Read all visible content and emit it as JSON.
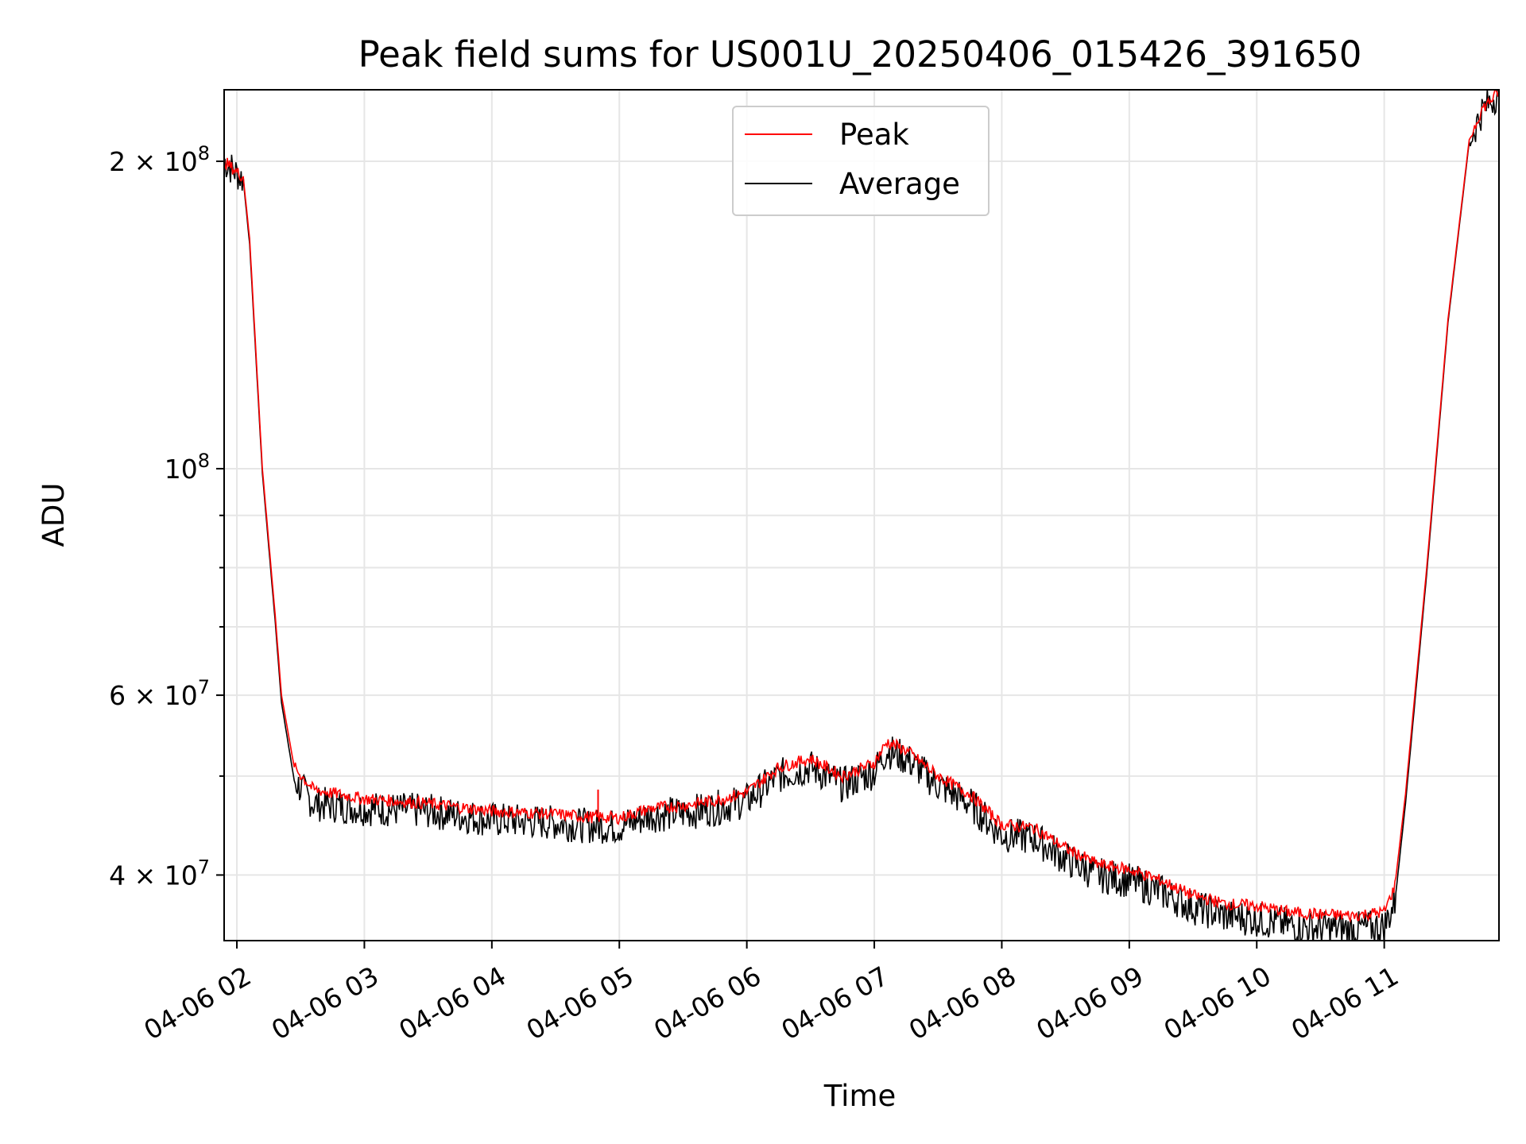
{
  "chart_data": {
    "type": "line",
    "title": "Peak field sums for US001U_20250406_015426_391650",
    "xlabel": "Time",
    "ylabel": "ADU",
    "y_scale": "log",
    "ylim": [
      34500000,
      235000000
    ],
    "xlim": [
      "04-06 01:54",
      "04-06 11:54"
    ],
    "grid": true,
    "legend_position": "upper center",
    "x_ticks": [
      {
        "time": "04-06 02:00",
        "label": "04-06 02"
      },
      {
        "time": "04-06 03:00",
        "label": "04-06 03"
      },
      {
        "time": "04-06 04:00",
        "label": "04-06 04"
      },
      {
        "time": "04-06 05:00",
        "label": "04-06 05"
      },
      {
        "time": "04-06 06:00",
        "label": "04-06 06"
      },
      {
        "time": "04-06 07:00",
        "label": "04-06 07"
      },
      {
        "time": "04-06 08:00",
        "label": "04-06 08"
      },
      {
        "time": "04-06 09:00",
        "label": "04-06 09"
      },
      {
        "time": "04-06 10:00",
        "label": "04-06 10"
      },
      {
        "time": "04-06 11:00",
        "label": "04-06 11"
      }
    ],
    "y_major_ticks": [
      {
        "value": 40000000,
        "mantissa": "4",
        "exponent": "7"
      },
      {
        "value": 60000000,
        "mantissa": "6",
        "exponent": "7"
      },
      {
        "value": 100000000,
        "mantissa": "",
        "exponent": "8"
      },
      {
        "value": 200000000,
        "mantissa": "2",
        "exponent": "8"
      }
    ],
    "y_minor_ticks": [
      50000000,
      70000000,
      80000000,
      90000000
    ],
    "series": [
      {
        "name": "Peak",
        "color": "#ff0000",
        "noise": 0.012,
        "x": [
          "04-06 01:54",
          "04-06 02:03",
          "04-06 02:06",
          "04-06 02:12",
          "04-06 02:18",
          "04-06 02:21",
          "04-06 02:27",
          "04-06 02:36",
          "04-06 03:00",
          "04-06 03:30",
          "04-06 04:00",
          "04-06 04:30",
          "04-06 04:45",
          "04-06 05:00",
          "04-06 05:15",
          "04-06 05:30",
          "04-06 05:45",
          "04-06 06:00",
          "04-06 06:15",
          "04-06 06:30",
          "04-06 06:45",
          "04-06 07:00",
          "04-06 07:06",
          "04-06 07:15",
          "04-06 07:30",
          "04-06 07:45",
          "04-06 08:00",
          "04-06 08:15",
          "04-06 08:30",
          "04-06 08:45",
          "04-06 09:00",
          "04-06 09:15",
          "04-06 09:30",
          "04-06 09:45",
          "04-06 10:00",
          "04-06 10:15",
          "04-06 10:30",
          "04-06 10:45",
          "04-06 11:00",
          "04-06 11:05",
          "04-06 11:10",
          "04-06 11:20",
          "04-06 11:30",
          "04-06 11:40",
          "04-06 11:46",
          "04-06 11:54"
        ],
        "y": [
          200000000,
          193000000,
          168000000,
          100000000,
          72000000,
          60000000,
          51000000,
          48500000,
          47500000,
          47000000,
          46200000,
          45900000,
          45600000,
          45500000,
          46500000,
          46800000,
          47300000,
          48200000,
          51000000,
          52000000,
          50000000,
          51500000,
          54000000,
          53000000,
          50000000,
          48000000,
          44800000,
          44500000,
          42500000,
          41000000,
          40500000,
          39500000,
          38200000,
          37500000,
          37300000,
          36800000,
          36600000,
          36500000,
          36800000,
          39000000,
          48000000,
          80000000,
          140000000,
          210000000,
          225000000,
          234000000
        ]
      },
      {
        "name": "Average",
        "color": "#000000",
        "noise": 0.035,
        "x": [
          "04-06 01:54",
          "04-06 02:03",
          "04-06 02:06",
          "04-06 02:12",
          "04-06 02:18",
          "04-06 02:21",
          "04-06 02:27",
          "04-06 02:36",
          "04-06 03:00",
          "04-06 03:30",
          "04-06 04:00",
          "04-06 04:30",
          "04-06 04:45",
          "04-06 05:00",
          "04-06 05:15",
          "04-06 05:30",
          "04-06 05:45",
          "04-06 06:00",
          "04-06 06:15",
          "04-06 06:30",
          "04-06 06:45",
          "04-06 07:00",
          "04-06 07:06",
          "04-06 07:15",
          "04-06 07:30",
          "04-06 07:45",
          "04-06 08:00",
          "04-06 08:15",
          "04-06 08:30",
          "04-06 08:45",
          "04-06 09:00",
          "04-06 09:15",
          "04-06 09:30",
          "04-06 09:45",
          "04-06 10:00",
          "04-06 10:15",
          "04-06 10:30",
          "04-06 10:45",
          "04-06 11:00",
          "04-06 11:05",
          "04-06 11:10",
          "04-06 11:20",
          "04-06 11:30",
          "04-06 11:40",
          "04-06 11:46",
          "04-06 11:54"
        ],
        "y": [
          200000000,
          192000000,
          166000000,
          99000000,
          71000000,
          59000000,
          49500000,
          47000000,
          46500000,
          46200000,
          45300000,
          45000000,
          44700000,
          44600000,
          45800000,
          46000000,
          46500000,
          47300000,
          50000000,
          51000000,
          49000000,
          50500000,
          53000000,
          52000000,
          49000000,
          47000000,
          43800000,
          43500000,
          41500000,
          40000000,
          39500000,
          38500000,
          37200000,
          36500000,
          36200000,
          35700000,
          35500000,
          35400000,
          35600000,
          37600000,
          47000000,
          79000000,
          139000000,
          209000000,
          224000000,
          234000000
        ]
      }
    ]
  }
}
